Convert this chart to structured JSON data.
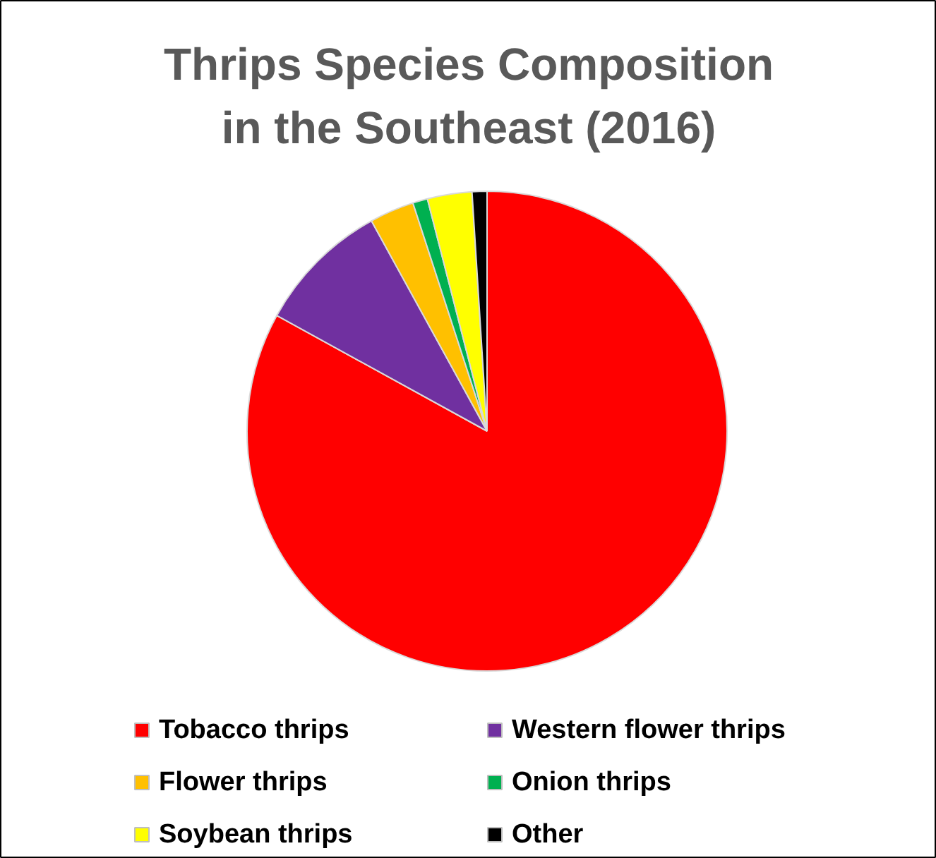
{
  "chart_data": {
    "type": "pie",
    "title": "Thrips Species Composition in the Southeast (2016)",
    "categories": [
      "Tobacco thrips",
      "Western flower thrips",
      "Flower thrips",
      "Onion thrips",
      "Soybean thrips",
      "Other"
    ],
    "values": [
      83,
      9,
      3,
      1,
      3,
      1
    ],
    "colors": [
      "#ff0000",
      "#7030a0",
      "#ffc000",
      "#00b050",
      "#ffff00",
      "#000000"
    ],
    "legend": "bottom"
  }
}
